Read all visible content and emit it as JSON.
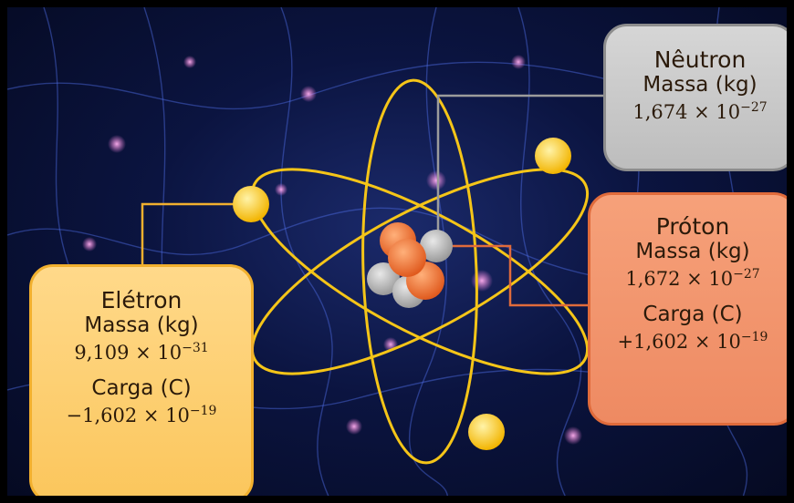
{
  "neutron": {
    "name": "Nêutron",
    "mass_label": "Massa (kg)",
    "mass_mantissa": "1,674 × 10",
    "mass_exponent": "−27"
  },
  "proton": {
    "name": "Próton",
    "mass_label": "Massa (kg)",
    "mass_mantissa": "1,672 × 10",
    "mass_exponent": "−27",
    "charge_label": "Carga (C)",
    "charge_mantissa": "+1,602 × 10",
    "charge_exponent": "−19"
  },
  "electron": {
    "name": "Elétron",
    "mass_label": "Massa (kg)",
    "mass_mantissa": "9,109 × 10",
    "mass_exponent": "−31",
    "charge_label": "Carga (C)",
    "charge_mantissa": "−1,602 × 10",
    "charge_exponent": "−19"
  },
  "colors": {
    "orbit": "#f5c518",
    "electron": "#f7c31b",
    "proton": "#f07a3a",
    "neutron": "#b8b8b8",
    "background": "#0b1440"
  }
}
